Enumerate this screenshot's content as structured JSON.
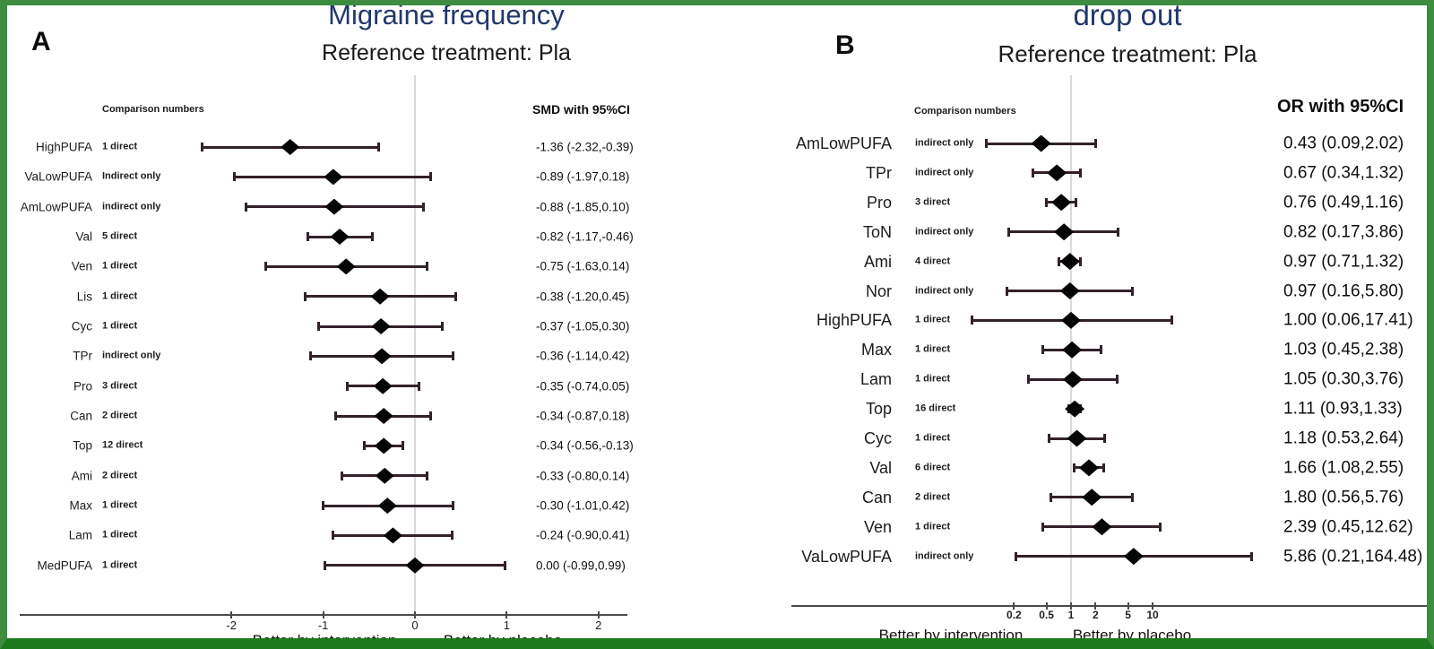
{
  "colors": {
    "frame_green": "#3d8c3f",
    "frame_bottom_green": "#1c7a1c",
    "title_navy": "#20386c",
    "ci_bar": "#32212b",
    "diamond_black": "#050505",
    "reference_line_gray": "#d9d9d9",
    "axis_gray": "#4a4a4a"
  },
  "chart_data": [
    {
      "type": "scatter",
      "variant": "forest-plot",
      "panel_label": "A",
      "title": "Migraine frequency",
      "subtitle": "Reference treatment: Pla",
      "columns": {
        "comparison": "Comparison numbers",
        "effect": "SMD with 95%CI"
      },
      "axis": {
        "scale": "linear",
        "range": [
          -2.45,
          2.45
        ],
        "reference": 0,
        "ticks": [
          -2,
          -1,
          0,
          1,
          2
        ],
        "tick_labels": [
          "-2",
          "-1",
          "0",
          "1",
          "2"
        ],
        "grid": false
      },
      "xlabel_left": "Better by intervention",
      "xlabel_right": "Better by placebo",
      "rows": [
        {
          "label": "HighPUFA",
          "comparison": "1 direct",
          "estimate": -1.36,
          "ci_low": -2.32,
          "ci_high": -0.39,
          "text": "-1.36 (-2.32,-0.39)"
        },
        {
          "label": "VaLowPUFA",
          "comparison": "Indirect only",
          "estimate": -0.89,
          "ci_low": -1.97,
          "ci_high": 0.18,
          "text": "-0.89 (-1.97,0.18)"
        },
        {
          "label": "AmLowPUFA",
          "comparison": "indirect only",
          "estimate": -0.88,
          "ci_low": -1.85,
          "ci_high": 0.1,
          "text": "-0.88 (-1.85,0.10)"
        },
        {
          "label": "Val",
          "comparison": "5 direct",
          "estimate": -0.82,
          "ci_low": -1.17,
          "ci_high": -0.46,
          "text": "-0.82 (-1.17,-0.46)"
        },
        {
          "label": "Ven",
          "comparison": "1 direct",
          "estimate": -0.75,
          "ci_low": -1.63,
          "ci_high": 0.14,
          "text": "-0.75 (-1.63,0.14)"
        },
        {
          "label": "Lis",
          "comparison": "1 direct",
          "estimate": -0.38,
          "ci_low": -1.2,
          "ci_high": 0.45,
          "text": "-0.38 (-1.20,0.45)"
        },
        {
          "label": "Cyc",
          "comparison": "1 direct",
          "estimate": -0.37,
          "ci_low": -1.05,
          "ci_high": 0.3,
          "text": "-0.37 (-1.05,0.30)"
        },
        {
          "label": "TPr",
          "comparison": "indirect only",
          "estimate": -0.36,
          "ci_low": -1.14,
          "ci_high": 0.42,
          "text": "-0.36 (-1.14,0.42)"
        },
        {
          "label": "Pro",
          "comparison": "3 direct",
          "estimate": -0.35,
          "ci_low": -0.74,
          "ci_high": 0.05,
          "text": "-0.35 (-0.74,0.05)"
        },
        {
          "label": "Can",
          "comparison": "2 direct",
          "estimate": -0.34,
          "ci_low": -0.87,
          "ci_high": 0.18,
          "text": "-0.34 (-0.87,0.18)"
        },
        {
          "label": "Top",
          "comparison": "12 direct",
          "estimate": -0.34,
          "ci_low": -0.56,
          "ci_high": -0.13,
          "text": "-0.34 (-0.56,-0.13)"
        },
        {
          "label": "Ami",
          "comparison": "2 direct",
          "estimate": -0.33,
          "ci_low": -0.8,
          "ci_high": 0.14,
          "text": "-0.33 (-0.80,0.14)"
        },
        {
          "label": "Max",
          "comparison": "1 direct",
          "estimate": -0.3,
          "ci_low": -1.01,
          "ci_high": 0.42,
          "text": "-0.30 (-1.01,0.42)"
        },
        {
          "label": "Lam",
          "comparison": "1 direct",
          "estimate": -0.24,
          "ci_low": -0.9,
          "ci_high": 0.41,
          "text": "-0.24 (-0.90,0.41)"
        },
        {
          "label": "MedPUFA",
          "comparison": "1 direct",
          "estimate": 0.0,
          "ci_low": -0.99,
          "ci_high": 0.99,
          "text": "0.00 (-0.99,0.99)"
        }
      ]
    },
    {
      "type": "scatter",
      "variant": "forest-plot",
      "panel_label": "B",
      "title": "drop out",
      "subtitle": "Reference treatment: Pla",
      "columns": {
        "comparison": "Comparison numbers",
        "effect": "OR with 95%CI"
      },
      "axis": {
        "scale": "log",
        "range": [
          0.05,
          200
        ],
        "reference": 1,
        "ticks": [
          0.2,
          0.5,
          1,
          2,
          5,
          10
        ],
        "tick_labels": [
          "0.2",
          "0.5",
          "1",
          "2",
          "5",
          "10"
        ],
        "grid": false
      },
      "xlabel_left": "Better by intervention",
      "xlabel_right": "Better by placebo",
      "rows": [
        {
          "label": "AmLowPUFA",
          "comparison": "indirect only",
          "estimate": 0.43,
          "ci_low": 0.09,
          "ci_high": 2.02,
          "text": "0.43 (0.09,2.02)"
        },
        {
          "label": "TPr",
          "comparison": "indirect only",
          "estimate": 0.67,
          "ci_low": 0.34,
          "ci_high": 1.32,
          "text": "0.67 (0.34,1.32)"
        },
        {
          "label": "Pro",
          "comparison": "3 direct",
          "estimate": 0.76,
          "ci_low": 0.49,
          "ci_high": 1.16,
          "text": "0.76 (0.49,1.16)"
        },
        {
          "label": "ToN",
          "comparison": "indirect only",
          "estimate": 0.82,
          "ci_low": 0.17,
          "ci_high": 3.86,
          "text": "0.82 (0.17,3.86)"
        },
        {
          "label": "Ami",
          "comparison": "4 direct",
          "estimate": 0.97,
          "ci_low": 0.71,
          "ci_high": 1.32,
          "text": "0.97 (0.71,1.32)"
        },
        {
          "label": "Nor",
          "comparison": "indirect only",
          "estimate": 0.97,
          "ci_low": 0.16,
          "ci_high": 5.8,
          "text": "0.97 (0.16,5.80)"
        },
        {
          "label": "HighPUFA",
          "comparison": "1 direct",
          "estimate": 1.0,
          "ci_low": 0.06,
          "ci_high": 17.41,
          "text": "1.00 (0.06,17.41)"
        },
        {
          "label": "Max",
          "comparison": "1 direct",
          "estimate": 1.03,
          "ci_low": 0.45,
          "ci_high": 2.38,
          "text": "1.03 (0.45,2.38)"
        },
        {
          "label": "Lam",
          "comparison": "1 direct",
          "estimate": 1.05,
          "ci_low": 0.3,
          "ci_high": 3.76,
          "text": "1.05 (0.30,3.76)"
        },
        {
          "label": "Top",
          "comparison": "16 direct",
          "estimate": 1.11,
          "ci_low": 0.93,
          "ci_high": 1.33,
          "text": "1.11 (0.93,1.33)"
        },
        {
          "label": "Cyc",
          "comparison": "1 direct",
          "estimate": 1.18,
          "ci_low": 0.53,
          "ci_high": 2.64,
          "text": "1.18 (0.53,2.64)"
        },
        {
          "label": "Val",
          "comparison": "6 direct",
          "estimate": 1.66,
          "ci_low": 1.08,
          "ci_high": 2.55,
          "text": "1.66 (1.08,2.55)"
        },
        {
          "label": "Can",
          "comparison": "2 direct",
          "estimate": 1.8,
          "ci_low": 0.56,
          "ci_high": 5.76,
          "text": "1.80 (0.56,5.76)"
        },
        {
          "label": "Ven",
          "comparison": "1 direct",
          "estimate": 2.39,
          "ci_low": 0.45,
          "ci_high": 12.62,
          "text": "2.39 (0.45,12.62)"
        },
        {
          "label": "VaLowPUFA",
          "comparison": "indirect only",
          "estimate": 5.86,
          "ci_low": 0.21,
          "ci_high": 164.48,
          "text": "5.86 (0.21,164.48)"
        }
      ]
    }
  ]
}
